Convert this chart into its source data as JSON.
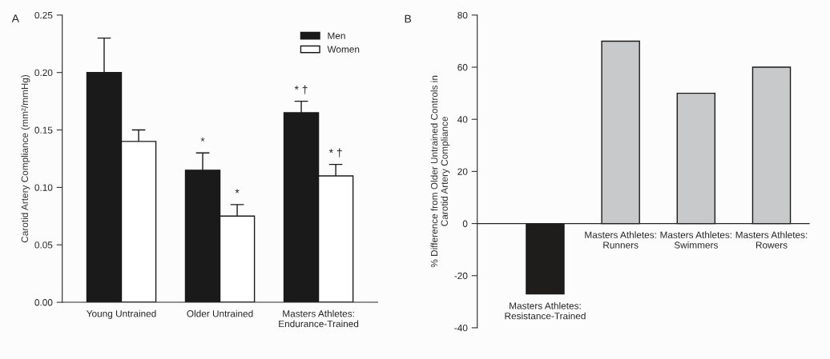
{
  "chart_data": [
    {
      "type": "bar",
      "title": "A",
      "ylabel": "Carotid Artery Compliance (mm²/mmHg)",
      "categories": [
        "Young Untrained",
        "Older Untrained",
        "Masters Athletes:\nEndurance-Trained"
      ],
      "series": [
        {
          "name": "Men",
          "color": "#1a1a1a",
          "values": [
            0.2,
            0.115,
            0.165
          ],
          "errors": [
            0.03,
            0.015,
            0.01
          ]
        },
        {
          "name": "Women",
          "color": "#ffffff",
          "values": [
            0.14,
            0.075,
            0.11
          ],
          "errors": [
            0.01,
            0.01,
            0.01
          ]
        }
      ],
      "ylim": [
        0,
        0.25
      ],
      "yticks": [
        {
          "value": 0,
          "label": "0.00"
        },
        0.05,
        {
          "value": 0.1,
          "label": "0.10"
        },
        0.15,
        {
          "value": 0.2,
          "label": "0.20"
        },
        0.25
      ],
      "annotations": [
        "*",
        {
          "text": "*",
          "x": "Older Untrained",
          "y": 0.085
        },
        "* †",
        {
          "text": "* †",
          "x": "Masters Athletes:\nEndurance-Trained",
          "y": 0.12
        }
      ],
      "legend": "top right",
      "grid": false
    },
    {
      "type": "bar",
      "title": "B",
      "ylabel": "% Difference from Older Untrained Controls in\nCarotid Artery Compliance",
      "categories": [
        "Masters Athletes:\nResistance-Trained",
        "Masters Athletes:\nRunners",
        "Masters Athletes:\nSwimmers",
        "Masters Athletes:\nRowers"
      ],
      "values": [
        -27,
        70,
        50,
        60
      ],
      "colors": [
        "#1f1c1c",
        "#c8c9cb",
        "#c8c9cb",
        "#c8c9cb"
      ],
      "ylim": [
        -40,
        80
      ],
      "yticks": [
        -40,
        -20,
        0,
        20,
        40,
        60,
        80
      ],
      "grid": false
    }
  ]
}
